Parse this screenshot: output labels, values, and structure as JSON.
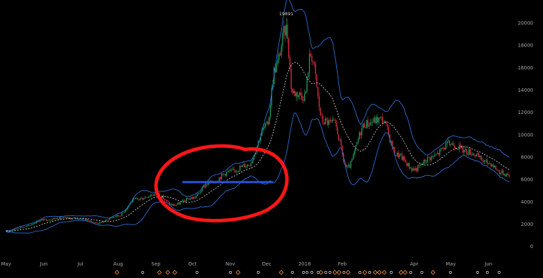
{
  "chart_data": {
    "type": "candlestick",
    "title": "",
    "xlabel": "",
    "ylabel": "",
    "x_tick_labels": [
      "May",
      "Jun",
      "Jul",
      "Aug",
      "Sep",
      "Oct",
      "Nov",
      "Dec",
      "2018",
      "Feb",
      "Apr",
      "May",
      "Jun"
    ],
    "y_ticks": [
      0,
      2000,
      4000,
      6000,
      8000,
      10000,
      12000,
      14000,
      16000,
      18000,
      20000
    ],
    "ylim": [
      -700,
      21300
    ],
    "peak_label": "19891",
    "grid": false,
    "approx_close": [
      {
        "date": "2017-05-01",
        "value": 1350
      },
      {
        "date": "2017-05-15",
        "value": 1750
      },
      {
        "date": "2017-06-01",
        "value": 2400
      },
      {
        "date": "2017-06-15",
        "value": 2550
      },
      {
        "date": "2017-07-01",
        "value": 2500
      },
      {
        "date": "2017-07-15",
        "value": 2100
      },
      {
        "date": "2017-08-01",
        "value": 2750
      },
      {
        "date": "2017-08-15",
        "value": 4200
      },
      {
        "date": "2017-09-01",
        "value": 4700
      },
      {
        "date": "2017-09-15",
        "value": 3700
      },
      {
        "date": "2017-10-01",
        "value": 4350
      },
      {
        "date": "2017-10-15",
        "value": 5700
      },
      {
        "date": "2017-11-01",
        "value": 6700
      },
      {
        "date": "2017-11-15",
        "value": 7300
      },
      {
        "date": "2017-12-01",
        "value": 10800
      },
      {
        "date": "2017-12-08",
        "value": 16000
      },
      {
        "date": "2017-12-17",
        "value": 19500
      },
      {
        "date": "2017-12-22",
        "value": 13800
      },
      {
        "date": "2018-01-01",
        "value": 13500
      },
      {
        "date": "2018-01-06",
        "value": 17200
      },
      {
        "date": "2018-01-16",
        "value": 11200
      },
      {
        "date": "2018-01-25",
        "value": 11000
      },
      {
        "date": "2018-02-05",
        "value": 7000
      },
      {
        "date": "2018-02-20",
        "value": 11000
      },
      {
        "date": "2018-03-05",
        "value": 11400
      },
      {
        "date": "2018-03-18",
        "value": 8200
      },
      {
        "date": "2018-04-01",
        "value": 6900
      },
      {
        "date": "2018-04-15",
        "value": 8000
      },
      {
        "date": "2018-05-01",
        "value": 9200
      },
      {
        "date": "2018-05-15",
        "value": 8500
      },
      {
        "date": "2018-06-01",
        "value": 7500
      },
      {
        "date": "2018-06-12",
        "value": 6600
      },
      {
        "date": "2018-06-18",
        "value": 6400
      }
    ]
  },
  "colors": {
    "up": "#1aa260",
    "down": "#e2313f",
    "band": "#2e6fd8",
    "sma": "#e6e6e6",
    "annotation_circle": "#ff1616",
    "annotation_line": "#2356e3",
    "marker_orange": "#e38b2a",
    "marker_white": "#cfcfcf"
  },
  "markers": "orange-diamond-and-white-circle-event-flags"
}
